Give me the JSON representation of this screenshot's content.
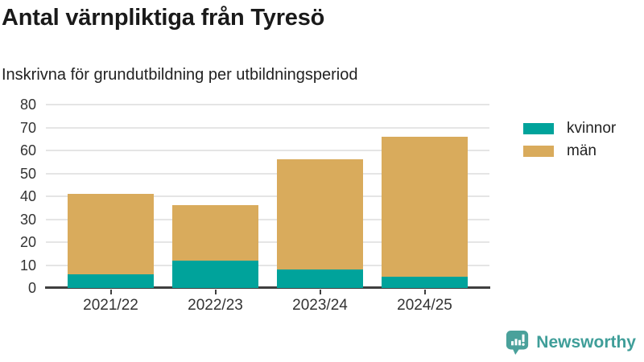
{
  "title": "Antal värnpliktiga från Tyresö",
  "subtitle": "Inskrivna för grundutbildning per utbildningsperiod",
  "chart_data": {
    "type": "bar",
    "stacked": true,
    "title": "Antal värnpliktiga från Tyresö",
    "subtitle": "Inskrivna för grundutbildning per utbildningsperiod",
    "categories": [
      "2021/22",
      "2022/23",
      "2023/24",
      "2024/25"
    ],
    "series": [
      {
        "name": "kvinnor",
        "color": "#00a39b",
        "values": [
          6,
          12,
          8,
          5
        ]
      },
      {
        "name": "män",
        "color": "#d9ab5c",
        "values": [
          35,
          24,
          48,
          61
        ]
      }
    ],
    "totals": [
      41,
      36,
      56,
      66
    ],
    "xlabel": "",
    "ylabel": "",
    "ylim": [
      0,
      80
    ],
    "yticks": [
      0,
      10,
      20,
      30,
      40,
      50,
      60,
      70,
      80
    ],
    "grid": true,
    "legend_position": "right"
  },
  "branding": {
    "logo_text": "Newsworthy",
    "logo_icon": "bar-chart-speech-bubble-icon",
    "logo_color": "#3f9e99"
  },
  "colors": {
    "grid": "#e5e5e5",
    "axis": "#3f3f3f",
    "tick_text": "#333333",
    "title_text": "#1a1a1a"
  }
}
